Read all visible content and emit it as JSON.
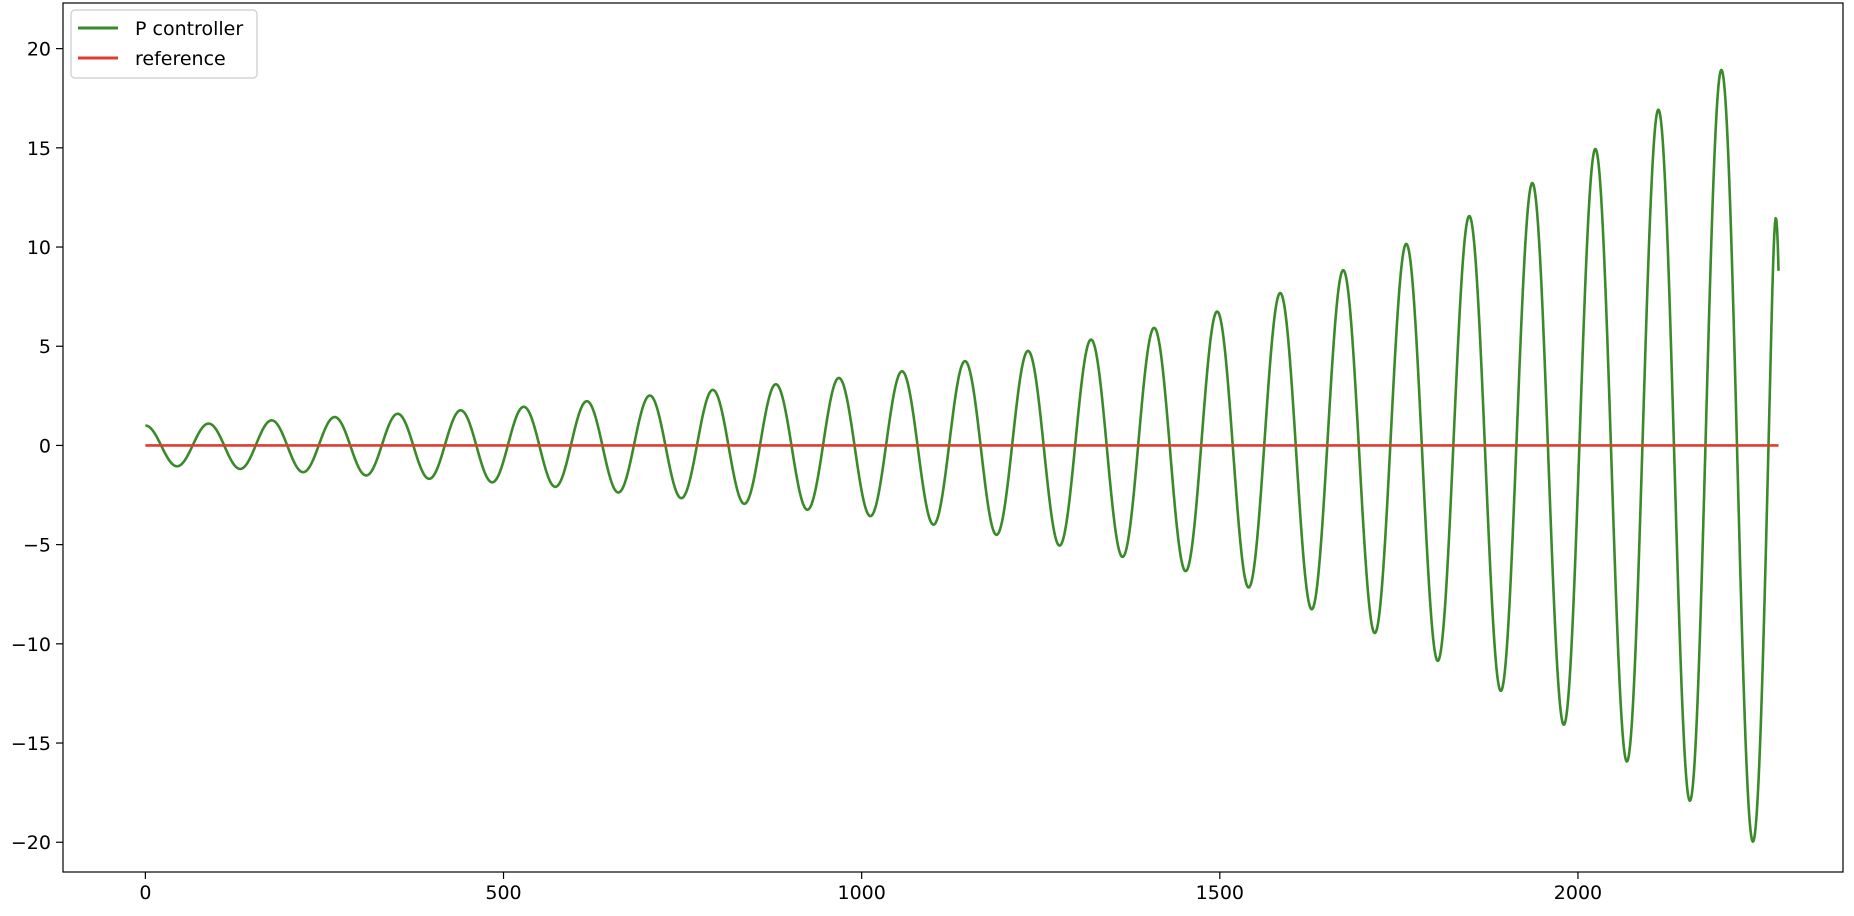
{
  "chart_data": {
    "type": "line",
    "title": "",
    "xlabel": "",
    "ylabel": "",
    "xlim": [
      -115,
      2370
    ],
    "ylim": [
      -21.5,
      22.3
    ],
    "xticks": [
      {
        "value": 0,
        "label": "0"
      },
      {
        "value": 500,
        "label": "500"
      },
      {
        "value": 1000,
        "label": "1000"
      },
      {
        "value": 1500,
        "label": "1500"
      },
      {
        "value": 2000,
        "label": "2000"
      }
    ],
    "yticks": [
      {
        "value": 20,
        "label": "20"
      },
      {
        "value": 15,
        "label": "15"
      },
      {
        "value": 10,
        "label": "10"
      },
      {
        "value": 5,
        "label": "5"
      },
      {
        "value": 0,
        "label": "0"
      },
      {
        "value": -5,
        "label": "−5"
      },
      {
        "value": -10,
        "label": "−10"
      },
      {
        "value": -15,
        "label": "−15"
      },
      {
        "value": -20,
        "label": "−20"
      }
    ],
    "grid": false,
    "legend_position": "top-left",
    "series": [
      {
        "name": "P controller",
        "color": "#3a8a2a",
        "x_range": [
          0,
          2280
        ],
        "period": 88,
        "initial_value": 1.0,
        "envelope": [
          {
            "x": 0,
            "amp": 1.0
          },
          {
            "x": 88,
            "amp": 1.1
          },
          {
            "x": 355,
            "amp": 1.6
          },
          {
            "x": 530,
            "amp": 1.95
          },
          {
            "x": 885,
            "amp": 3.1
          },
          {
            "x": 1050,
            "amp": 3.7
          },
          {
            "x": 1230,
            "amp": 4.75
          },
          {
            "x": 1400,
            "amp": 5.85
          },
          {
            "x": 1555,
            "amp": 7.3
          },
          {
            "x": 1700,
            "amp": 9.2
          },
          {
            "x": 1860,
            "amp": 11.75
          },
          {
            "x": 2020,
            "amp": 14.85
          },
          {
            "x": 2180,
            "amp": 18.45
          },
          {
            "x": 2260,
            "amp": 20.35
          }
        ],
        "end_value": 8.8
      },
      {
        "name": "reference",
        "color": "#e03c31",
        "x": [
          0,
          2280
        ],
        "y": [
          0,
          0
        ]
      }
    ]
  }
}
